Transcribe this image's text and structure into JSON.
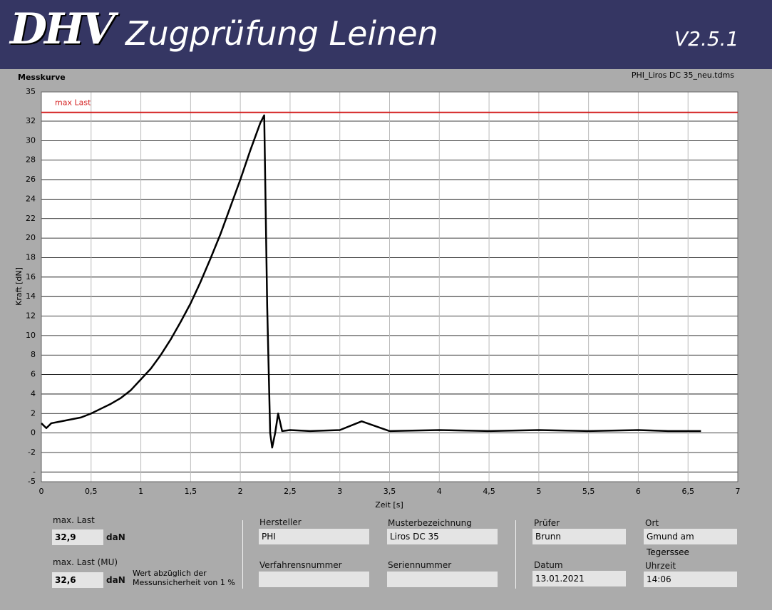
{
  "header": {
    "logo": "DHV",
    "title": "Zugprüfung Leinen",
    "version": "V2.5.1"
  },
  "chart_data": {
    "type": "line",
    "title": "Messkurve",
    "subtitle": "PHI_Liros DC 35_neu.tdms",
    "ylabel": "Kraft [dN]",
    "xlabel": "Zeit [s]",
    "x": [
      0,
      0.05,
      0.1,
      0.2,
      0.3,
      0.4,
      0.5,
      0.6,
      0.7,
      0.8,
      0.9,
      1.0,
      1.1,
      1.2,
      1.3,
      1.4,
      1.5,
      1.6,
      1.7,
      1.8,
      1.9,
      2.0,
      2.1,
      2.2,
      2.24,
      2.27,
      2.3,
      2.32,
      2.35,
      2.38,
      2.42,
      2.5,
      2.7,
      3.0,
      3.22,
      3.5,
      4.0,
      4.5,
      5.0,
      5.5,
      6.0,
      6.3,
      6.63
    ],
    "values": [
      1,
      0.5,
      1,
      1.2,
      1.4,
      1.6,
      2,
      2.5,
      3,
      3.6,
      4.4,
      5.5,
      6.6,
      8,
      9.6,
      11.4,
      13.3,
      15.5,
      17.9,
      20.4,
      23.2,
      26,
      29,
      31.8,
      32.6,
      13,
      0,
      -1.5,
      0,
      2,
      0.2,
      0.3,
      0.2,
      0.3,
      1.2,
      0.2,
      0.3,
      0.2,
      0.3,
      0.2,
      0.3,
      0.2,
      0.2
    ],
    "color": "#000000",
    "xlim": [
      0,
      7
    ],
    "xticks": [
      0,
      {
        "value": 0.5,
        "label": "0,5"
      },
      1,
      {
        "value": 1.5,
        "label": "1,5"
      },
      2,
      {
        "value": 2.5,
        "label": "2,5"
      },
      3,
      {
        "value": 3.5,
        "label": "3,5"
      },
      4,
      {
        "value": 4.5,
        "label": "4,5"
      },
      5,
      {
        "value": 5.5,
        "label": "5,5"
      },
      6,
      {
        "value": 6.5,
        "label": "6,5"
      },
      7
    ],
    "ylim": [
      -5,
      35
    ],
    "yticks": [
      -5,
      {
        "value": -4,
        "label": "-"
      },
      -2,
      0,
      2,
      4,
      6,
      8,
      10,
      12,
      14,
      16,
      18,
      20,
      22,
      24,
      26,
      28,
      30,
      32,
      35
    ],
    "grid": true,
    "reference_line": {
      "label": "max Last",
      "value": 32.9,
      "color": "#d42020"
    }
  },
  "results": {
    "max_last_label": "max. Last",
    "max_last": "32,9",
    "max_last_unit": "daN",
    "max_last_mu_label": "max. Last (MU)",
    "max_last_mu": "32,6",
    "max_last_mu_unit": "daN",
    "note": "Wert abzüglich der Messunsicherheit von 1 %"
  },
  "fields": {
    "hersteller_label": "Hersteller",
    "hersteller": "PHI",
    "muster_label": "Musterbezeichnung",
    "muster": "Liros DC 35",
    "verfahren_label": "Verfahrensnummer",
    "serien_label": "Seriennummer",
    "pruefer_label": "Prüfer",
    "pruefer": "Brunn",
    "ort_label": "Ort",
    "ort": "Gmund am Tegerssee",
    "datum_label": "Datum",
    "datum": "13.01.2021",
    "uhrzeit_label": "Uhrzeit",
    "uhrzeit": "14:06"
  }
}
